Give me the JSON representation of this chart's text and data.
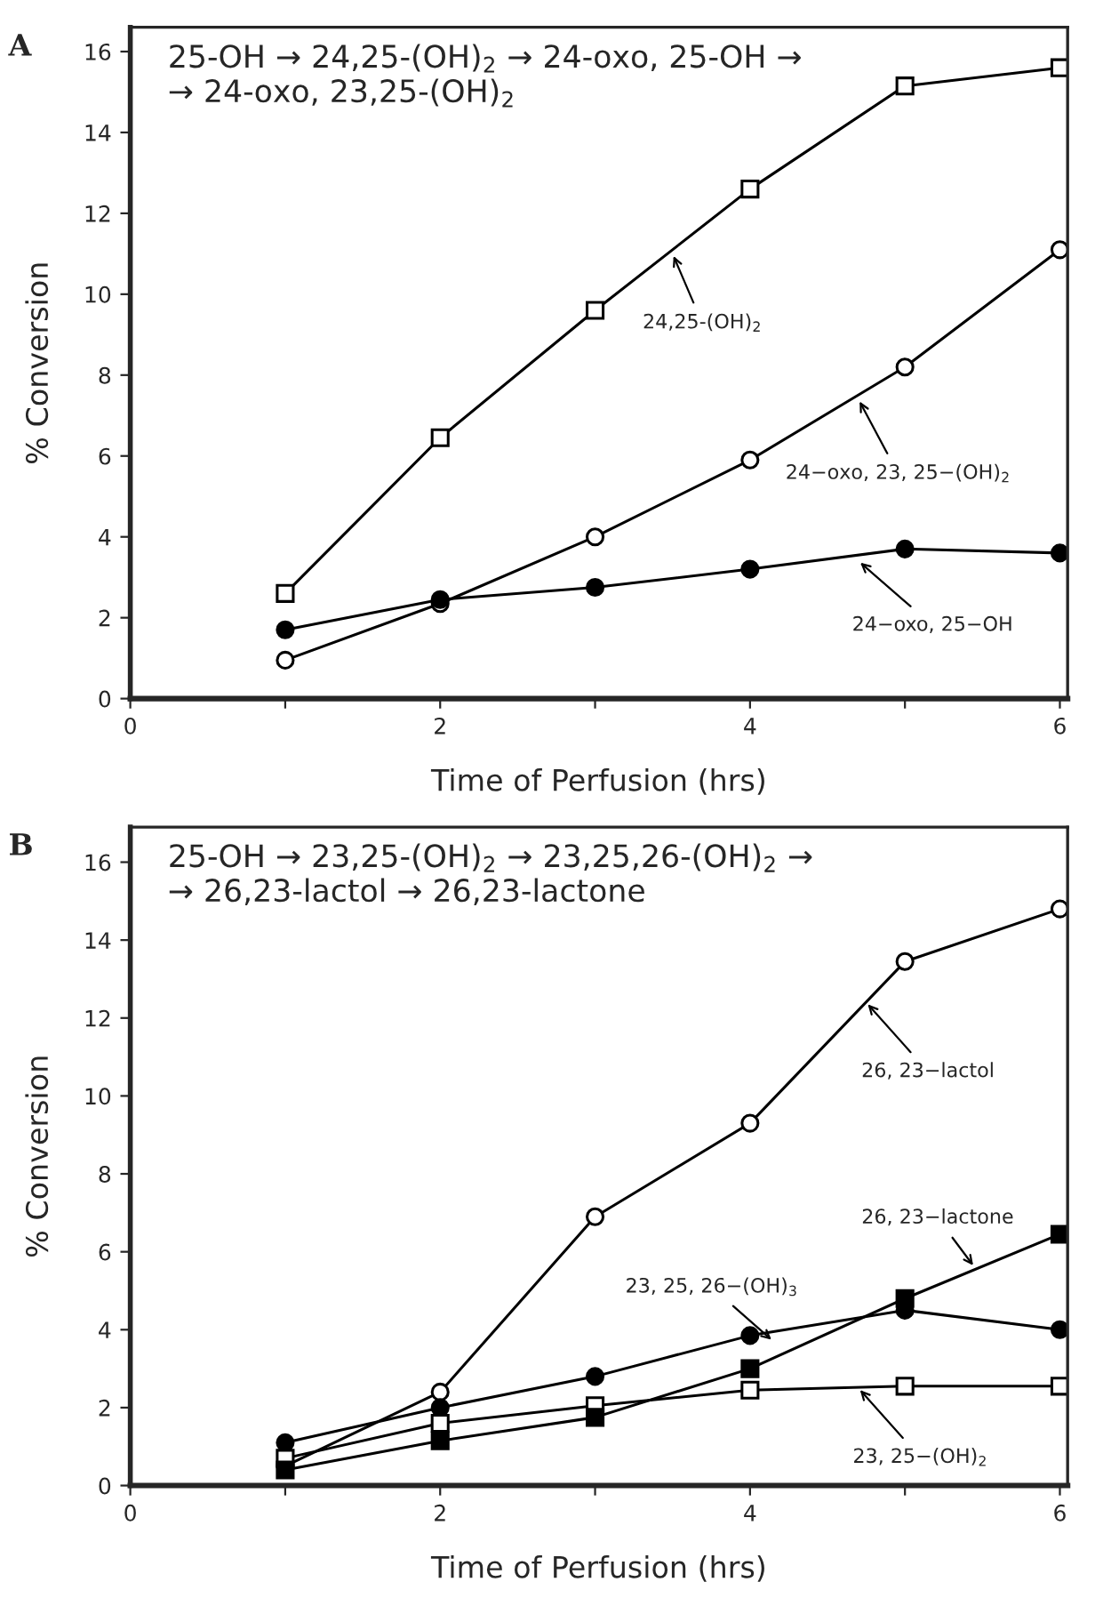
{
  "chart_data": [
    {
      "type": "line",
      "title": "25-OH → 24,25-(OH)$_{2}$ → 24-oxo, 25-OH →\n→ 24-oxo, 23,25-(OH)$_{2}$",
      "xlabel": "Time of Perfusion (hrs)",
      "ylabel": "% Conversion",
      "x": [
        1,
        2,
        3,
        4,
        5,
        6
      ],
      "series": [
        {
          "color": "#ffffff",
          "marker": "square",
          "values": [
            2.6,
            6.45,
            9.6,
            12.6,
            15.15,
            15.6
          ]
        },
        {
          "color": "#ffffff",
          "marker": "circle",
          "values": [
            0.95,
            2.35,
            4.0,
            5.9,
            8.2,
            11.1
          ]
        },
        {
          "color": "#000000",
          "marker": "circle",
          "values": [
            1.7,
            2.45,
            2.75,
            3.2,
            3.7,
            3.6
          ]
        }
      ],
      "annotations": [
        "A",
        {
          "text": "24,25-(OH)$_{2}$",
          "x": 3.5,
          "y": 11.0
        },
        {
          "text": "24−oxo, 23, 25−(OH)$_{2}$",
          "x": 4.7,
          "y": 7.4
        },
        {
          "text": "24−oxo, 25−OH",
          "x": 4.7,
          "y": 3.4
        }
      ],
      "xlim": [
        0,
        6.05
      ],
      "ylim": [
        0,
        16.6
      ],
      "xticks": [
        0,
        {
          "value": 1,
          "label": null
        },
        2,
        {
          "value": 3,
          "label": null
        },
        4,
        {
          "value": 5,
          "label": null
        },
        6
      ],
      "yticks": [
        0,
        2,
        4,
        6,
        8,
        10,
        12,
        14,
        16
      ],
      "grid": false,
      "line_style": "solid"
    },
    {
      "type": "line",
      "title": "25-OH → 23,25-(OH)$_{2}$ → 23,25,26-(OH)$_{2}$ →\n→ 26,23-lactol → 26,23-lactone",
      "xlabel": "Time of Perfusion (hrs)",
      "ylabel": "% Conversion",
      "x": [
        1,
        2,
        3,
        4,
        5,
        6
      ],
      "series": [
        {
          "color": "#ffffff",
          "marker": "circle",
          "values": [
            0.5,
            2.4,
            6.9,
            9.3,
            13.45,
            14.8
          ]
        },
        {
          "color": "#000000",
          "marker": "circle",
          "values": [
            1.1,
            2.0,
            2.8,
            3.85,
            4.5,
            4.0
          ]
        },
        {
          "color": "#ffffff",
          "marker": "square",
          "values": [
            0.7,
            1.6,
            2.05,
            2.45,
            2.55,
            2.55
          ]
        },
        {
          "color": "#000000",
          "marker": "square",
          "values": [
            0.4,
            1.15,
            1.75,
            3.0,
            4.8,
            6.45
          ]
        }
      ],
      "annotations": [
        "B",
        {
          "text": "26, 23−lactol",
          "x": 4.75,
          "y": 12.4
        },
        {
          "text": "26, 23−lactone",
          "x": 5.45,
          "y": 5.6
        },
        {
          "text": "23, 25, 26−(OH)$_{3}$",
          "x": 4.15,
          "y": 3.7
        },
        {
          "text": "23, 25−(OH)$_{2}$",
          "x": 4.7,
          "y": 2.5
        }
      ],
      "xlim": [
        0,
        6.05
      ],
      "ylim": [
        0,
        16.9
      ],
      "xticks": [
        0,
        {
          "value": 1,
          "label": null
        },
        2,
        {
          "value": 3,
          "label": null
        },
        4,
        {
          "value": 5,
          "label": null
        },
        6
      ],
      "yticks": [
        0,
        2,
        4,
        6,
        8,
        10,
        12,
        14,
        16
      ],
      "grid": false,
      "line_style": "solid"
    }
  ]
}
